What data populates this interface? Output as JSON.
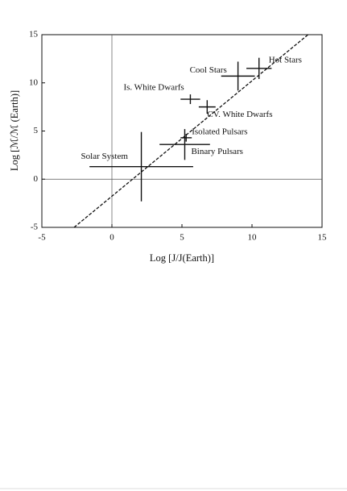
{
  "chart_data": {
    "type": "scatter",
    "xlabel": "Log [J/J(Earth)]",
    "ylabel": "Log [ℳ/ℳ (Earth)]",
    "xlim": [
      -5,
      15
    ],
    "ylim": [
      -5,
      15
    ],
    "xticks": [
      -5,
      0,
      5,
      10,
      15
    ],
    "yticks": [
      -5,
      0,
      5,
      10,
      15
    ],
    "color": "#111111",
    "points": [
      {
        "label": "Solar System",
        "x": 2.1,
        "y": 1.3,
        "xerr": 3.7,
        "yerr": 3.6
      },
      {
        "label": "Binary Pulsars",
        "x": 5.2,
        "y": 3.6,
        "xerr": 1.8,
        "yerr": 1.6
      },
      {
        "label": "Isolated Pulsars",
        "x": 5.3,
        "y": 4.3,
        "xerr": 0.4,
        "yerr": 0.4
      },
      {
        "label": "Is. White Dwarfs",
        "x": 5.6,
        "y": 8.3,
        "xerr": 0.7,
        "yerr": 0.5
      },
      {
        "label": "CV. White Dwarfs",
        "x": 6.8,
        "y": 7.5,
        "xerr": 0.6,
        "yerr": 0.7
      },
      {
        "label": "Cool Stars",
        "x": 9.0,
        "y": 10.7,
        "xerr": 1.2,
        "yerr": 1.5
      },
      {
        "label": "Hot Stars",
        "x": 10.5,
        "y": 11.5,
        "xerr": 0.9,
        "yerr": 1.1
      }
    ],
    "line": {
      "x": [
        -2.7,
        14
      ],
      "y": [
        -5,
        15
      ]
    }
  }
}
